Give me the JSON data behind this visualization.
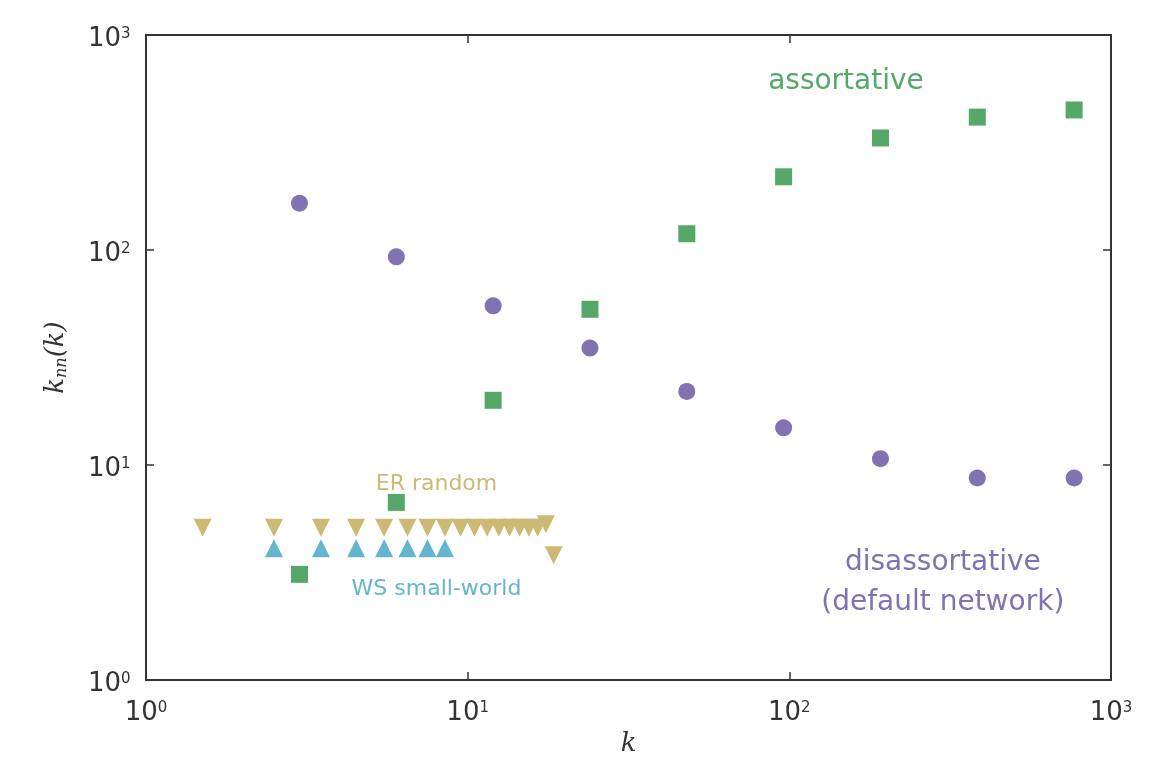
{
  "chart_data": {
    "type": "scatter",
    "xlabel": "k",
    "ylabel": "k$_{nn}$(k)",
    "log": "xy",
    "grid": false,
    "legend": false,
    "xlim": [
      1,
      1000
    ],
    "ylim": [
      1,
      1000
    ],
    "xticks": [
      {
        "value": 1,
        "label": "10$^{0}$"
      },
      {
        "value": 10,
        "label": "10$^{1}$"
      },
      {
        "value": 100,
        "label": "10$^{2}$"
      },
      {
        "value": 1000,
        "label": "10$^{3}$"
      }
    ],
    "yticks": [
      {
        "value": 1,
        "label": "10$^{0}$"
      },
      {
        "value": 10,
        "label": "10$^{1}$"
      },
      {
        "value": 100,
        "label": "10$^{2}$"
      },
      {
        "value": 1000,
        "label": "10$^{3}$"
      }
    ],
    "series": [
      {
        "name": "assortative",
        "color": "#55a868",
        "marker": "square",
        "x": [
          3,
          6,
          12,
          24,
          48,
          96,
          192,
          384,
          768
        ],
        "values": [
          3.1,
          6.7,
          20,
          53,
          119,
          219,
          332,
          415,
          448
        ]
      },
      {
        "name": "disassortative\n(default network)",
        "color": "#8172b2",
        "marker": "circle",
        "x": [
          3,
          6,
          12,
          24,
          48,
          96,
          192,
          384,
          768
        ],
        "values": [
          165,
          93,
          55,
          35,
          22,
          14.9,
          10.7,
          8.7,
          8.7
        ]
      },
      {
        "name": "ER random",
        "color": "#ccb974",
        "marker": "triangle-down",
        "x": [
          1.5,
          2.5,
          3.5,
          4.5,
          5.5,
          6.5,
          7.5,
          8.5,
          9.5,
          10.5,
          11.5,
          12.5,
          13.5,
          14.5,
          15.5,
          16.5,
          17.5,
          18.5
        ],
        "values": [
          5.1,
          5.1,
          5.1,
          5.1,
          5.1,
          5.1,
          5.1,
          5.1,
          5.1,
          5.1,
          5.1,
          5.1,
          5.1,
          5.1,
          5.1,
          5.1,
          5.3,
          3.8
        ]
      },
      {
        "name": "WS small-world",
        "color": "#64b5cd",
        "marker": "triangle",
        "x": [
          2.5,
          3.5,
          4.5,
          5.5,
          6.5,
          7.5,
          8.5
        ],
        "values": [
          4.1,
          4.1,
          4.1,
          4.1,
          4.1,
          4.1,
          4.1
        ]
      }
    ]
  }
}
